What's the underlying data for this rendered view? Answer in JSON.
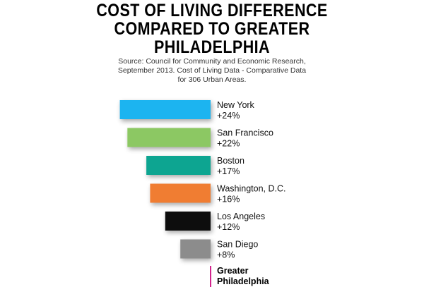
{
  "title_lines": [
    "COST OF LIVING DIFFERENCE",
    "COMPARED TO GREATER",
    "PHILADELPHIA"
  ],
  "source_lines": [
    "Source: Council for Community and Economic Research,",
    "September 2013. Cost of Living Data - Comparative Data",
    "for 306 Urban Areas."
  ],
  "chart_data": {
    "type": "bar",
    "orientation": "horizontal",
    "title": "COST OF LIVING DIFFERENCE COMPARED TO GREATER PHILADELPHIA",
    "categories": [
      "New York",
      "San Francisco",
      "Boston",
      "Washington, D.C.",
      "Los Angeles",
      "San Diego"
    ],
    "values": [
      24,
      22,
      17,
      16,
      12,
      8
    ],
    "value_labels": [
      "+24%",
      "+22%",
      "+17%",
      "+16%",
      "+12%",
      "+8%"
    ],
    "colors": [
      "#1eb4f0",
      "#8cc864",
      "#0fa591",
      "#f07d32",
      "#0a0a0a",
      "#8c8c8c"
    ],
    "reference": {
      "label_lines": [
        "Greater",
        "Philadelphia"
      ],
      "value": 0,
      "color": "#d2238c"
    },
    "unit": "%",
    "xlim": [
      0,
      24
    ],
    "grid": false,
    "legend": "none"
  }
}
